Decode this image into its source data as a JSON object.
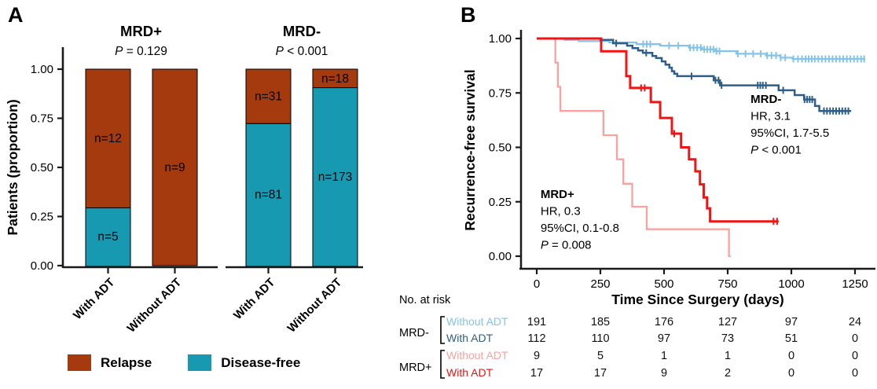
{
  "figure": {
    "panel_a_label": "A",
    "panel_b_label": "B",
    "background": "#ffffff"
  },
  "colors": {
    "relapse": "#A53A0F",
    "disease_free": "#1899B2",
    "mrd_neg_without_adt": "#85C4EA",
    "mrd_neg_with_adt": "#2E5E8A",
    "mrd_pos_without_adt": "#F9A3A0",
    "mrd_pos_with_adt": "#F01414",
    "axis": "#1a1a1a",
    "text": "#000000"
  },
  "chart_data": [
    {
      "type": "bar",
      "stacked": true,
      "ylabel": "Patients (proportion)",
      "ylim": [
        0,
        1
      ],
      "ytick_labels": [
        "0.00",
        "0.25",
        "0.50",
        "0.75",
        "1.00"
      ],
      "facets": [
        {
          "title": "MRD+",
          "pvalue": "P = 0.129",
          "bars": [
            {
              "category": "With ADT",
              "relapse": 12,
              "disease_free": 5,
              "labels": {
                "relapse": "n=12",
                "disease_free": "n=5"
              }
            },
            {
              "category": "Without ADT",
              "relapse": 9,
              "disease_free": 0,
              "labels": {
                "relapse": "n=9"
              }
            }
          ]
        },
        {
          "title": "MRD-",
          "pvalue": "P < 0.001",
          "bars": [
            {
              "category": "With ADT",
              "relapse": 31,
              "disease_free": 81,
              "labels": {
                "relapse": "n=31",
                "disease_free": "n=81"
              }
            },
            {
              "category": "Without ADT",
              "relapse": 18,
              "disease_free": 173,
              "labels": {
                "relapse": "n=18",
                "disease_free": "n=173"
              }
            }
          ]
        }
      ],
      "legend": [
        {
          "label": "Relapse",
          "color_key": "relapse"
        },
        {
          "label": "Disease-free",
          "color_key": "disease_free"
        }
      ]
    },
    {
      "type": "line",
      "subtype": "kaplan-meier",
      "xlabel": "Time Since Surgery (days)",
      "ylabel": "Recurrence-free survival",
      "xlim": [
        0,
        1335
      ],
      "ylim": [
        0,
        1
      ],
      "xticks": [
        0,
        250,
        500,
        750,
        1000,
        1250
      ],
      "ytick_labels": [
        "0.00",
        "0.25",
        "0.50",
        "0.75",
        "1.00"
      ],
      "series": [
        {
          "name": "MRD- Without ADT",
          "color_key": "mrd_neg_without_adt",
          "stroke_width": 2.3,
          "points": [
            [
              0,
              1
            ],
            [
              110,
              1
            ],
            [
              110,
              0.994
            ],
            [
              165,
              0.994
            ],
            [
              165,
              0.988
            ],
            [
              285,
              0.988
            ],
            [
              285,
              0.982
            ],
            [
              392,
              0.982
            ],
            [
              392,
              0.974
            ],
            [
              485,
              0.974
            ],
            [
              485,
              0.967
            ],
            [
              598,
              0.967
            ],
            [
              598,
              0.958
            ],
            [
              650,
              0.958
            ],
            [
              650,
              0.95
            ],
            [
              700,
              0.95
            ],
            [
              700,
              0.942
            ],
            [
              784,
              0.942
            ],
            [
              784,
              0.93
            ],
            [
              900,
              0.93
            ],
            [
              900,
              0.922
            ],
            [
              957,
              0.922
            ],
            [
              957,
              0.912
            ],
            [
              1005,
              0.912
            ],
            [
              1005,
              0.906
            ],
            [
              1290,
              0.906
            ]
          ],
          "censor_days": [
            418,
            432,
            446,
            520,
            556,
            602,
            616,
            630,
            644,
            658,
            670,
            682,
            694,
            706,
            718,
            790,
            820,
            850,
            880,
            905,
            922,
            940,
            958,
            976,
            1008,
            1026,
            1042,
            1056,
            1068,
            1080,
            1092,
            1106,
            1120,
            1134,
            1148,
            1162,
            1176,
            1190,
            1204,
            1218,
            1232,
            1246,
            1260,
            1274,
            1286
          ]
        },
        {
          "name": "MRD- With ADT",
          "color_key": "mrd_neg_with_adt",
          "stroke_width": 2.5,
          "points": [
            [
              0,
              1
            ],
            [
              250,
              1
            ],
            [
              250,
              0.994
            ],
            [
              300,
              0.994
            ],
            [
              300,
              0.978
            ],
            [
              355,
              0.978
            ],
            [
              355,
              0.967
            ],
            [
              376,
              0.967
            ],
            [
              376,
              0.956
            ],
            [
              398,
              0.956
            ],
            [
              398,
              0.945
            ],
            [
              417,
              0.945
            ],
            [
              417,
              0.934
            ],
            [
              454,
              0.934
            ],
            [
              454,
              0.92
            ],
            [
              469,
              0.92
            ],
            [
              469,
              0.91
            ],
            [
              491,
              0.91
            ],
            [
              491,
              0.895
            ],
            [
              506,
              0.895
            ],
            [
              506,
              0.88
            ],
            [
              521,
              0.88
            ],
            [
              521,
              0.866
            ],
            [
              531,
              0.866
            ],
            [
              531,
              0.85
            ],
            [
              540,
              0.85
            ],
            [
              540,
              0.838
            ],
            [
              552,
              0.838
            ],
            [
              552,
              0.827
            ],
            [
              695,
              0.827
            ],
            [
              695,
              0.808
            ],
            [
              720,
              0.808
            ],
            [
              720,
              0.785
            ],
            [
              950,
              0.785
            ],
            [
              950,
              0.762
            ],
            [
              1013,
              0.762
            ],
            [
              1013,
              0.74
            ],
            [
              1050,
              0.74
            ],
            [
              1050,
              0.72
            ],
            [
              1093,
              0.72
            ],
            [
              1093,
              0.69
            ],
            [
              1110,
              0.69
            ],
            [
              1110,
              0.667
            ],
            [
              1235,
              0.667
            ]
          ],
          "censor_days": [
            312,
            430,
            608,
            702,
            714,
            726,
            868,
            878,
            888,
            900,
            968,
            1052,
            1062,
            1072,
            1082,
            1128,
            1140,
            1152,
            1164,
            1176,
            1188,
            1200,
            1212,
            1224
          ]
        },
        {
          "name": "MRD+ Without ADT",
          "color_key": "mrd_pos_without_adt",
          "stroke_width": 2.3,
          "points": [
            [
              0,
              1
            ],
            [
              73,
              1
            ],
            [
              73,
              0.889
            ],
            [
              83,
              0.889
            ],
            [
              83,
              0.778
            ],
            [
              93,
              0.778
            ],
            [
              93,
              0.667
            ],
            [
              262,
              0.667
            ],
            [
              262,
              0.556
            ],
            [
              315,
              0.556
            ],
            [
              315,
              0.445
            ],
            [
              340,
              0.445
            ],
            [
              340,
              0.333
            ],
            [
              375,
              0.333
            ],
            [
              375,
              0.227
            ],
            [
              432,
              0.227
            ],
            [
              432,
              0.124
            ],
            [
              755,
              0.124
            ],
            [
              755,
              0
            ],
            [
              762,
              0
            ]
          ],
          "censor_days": []
        },
        {
          "name": "MRD+ With ADT",
          "color_key": "mrd_pos_with_adt",
          "stroke_width": 3,
          "points": [
            [
              0,
              1
            ],
            [
              253,
              1
            ],
            [
              253,
              0.941
            ],
            [
              352,
              0.941
            ],
            [
              352,
              0.827
            ],
            [
              367,
              0.827
            ],
            [
              367,
              0.773
            ],
            [
              448,
              0.773
            ],
            [
              448,
              0.708
            ],
            [
              485,
              0.708
            ],
            [
              485,
              0.635
            ],
            [
              531,
              0.635
            ],
            [
              531,
              0.563
            ],
            [
              567,
              0.563
            ],
            [
              567,
              0.5
            ],
            [
              598,
              0.5
            ],
            [
              598,
              0.445
            ],
            [
              623,
              0.445
            ],
            [
              623,
              0.39
            ],
            [
              641,
              0.39
            ],
            [
              641,
              0.33
            ],
            [
              656,
              0.33
            ],
            [
              656,
              0.27
            ],
            [
              669,
              0.27
            ],
            [
              669,
              0.22
            ],
            [
              681,
              0.22
            ],
            [
              681,
              0.16
            ],
            [
              950,
              0.16
            ]
          ],
          "censor_days": [
            410,
            424,
            540,
            930,
            944
          ]
        }
      ],
      "annotations": [
        {
          "day": 840,
          "value": 0.704,
          "lines": [
            "MRD-",
            "HR, 3.1",
            "95%CI, 1.7-5.5",
            "P < 0.001"
          ]
        },
        {
          "day": 15,
          "value": 0.267,
          "lines": [
            "MRD+",
            "HR, 0.3",
            "95%CI, 0.1-0.8",
            "P = 0.008"
          ]
        }
      ]
    }
  ],
  "risk_table": {
    "header": "No. at risk",
    "time_columns": [
      0,
      250,
      500,
      750,
      1000,
      1250
    ],
    "groups": [
      {
        "label": "MRD-",
        "rows": [
          {
            "label": "Without ADT",
            "color_key": "mrd_neg_without_adt",
            "counts": [
              191,
              185,
              176,
              127,
              97,
              24
            ]
          },
          {
            "label": "With ADT",
            "color_key": "mrd_neg_with_adt",
            "counts": [
              112,
              110,
              97,
              73,
              51,
              0
            ]
          }
        ]
      },
      {
        "label": "MRD+",
        "rows": [
          {
            "label": "Without ADT",
            "color_key": "mrd_pos_without_adt",
            "counts": [
              9,
              5,
              1,
              1,
              0,
              0
            ]
          },
          {
            "label": "With ADT",
            "color_key": "mrd_pos_with_adt",
            "counts": [
              17,
              17,
              9,
              2,
              0,
              0
            ]
          }
        ]
      }
    ]
  }
}
